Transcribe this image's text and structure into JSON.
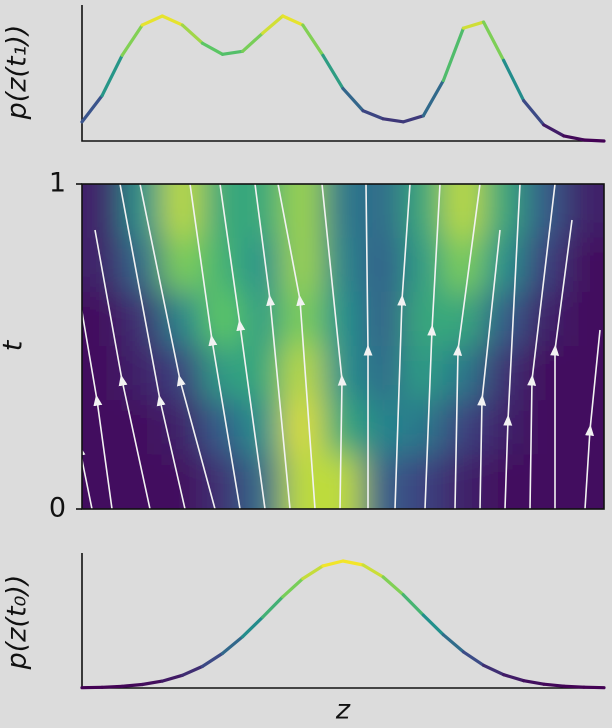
{
  "chart_data": [
    {
      "type": "line",
      "ylabel": "p(z(t₁))",
      "colormap": "viridis",
      "values": [
        19,
        45,
        85,
        115,
        124,
        115,
        97,
        86,
        89,
        107,
        124,
        115,
        85,
        52,
        30,
        22,
        19,
        25,
        60,
        112,
        118,
        80,
        40,
        16,
        5,
        1,
        0
      ]
    },
    {
      "type": "heatmap",
      "ylabel": "t",
      "colormap": "viridis",
      "ylim": [
        0,
        1
      ],
      "yticks": [
        0,
        1
      ],
      "values": [
        [
          0.1,
          0.5,
          0.9,
          0.6,
          0.6,
          0.85,
          0.4,
          0.35,
          0.6,
          0.9,
          0.6,
          0.3,
          0.1
        ],
        [
          0.1,
          0.35,
          0.8,
          0.65,
          0.5,
          0.85,
          0.45,
          0.3,
          0.55,
          0.8,
          0.5,
          0.2,
          0.05
        ],
        [
          0.05,
          0.15,
          0.45,
          0.75,
          0.55,
          0.8,
          0.5,
          0.3,
          0.6,
          0.6,
          0.3,
          0.1,
          0.05
        ],
        [
          0.05,
          0.1,
          0.2,
          0.55,
          0.6,
          0.9,
          0.5,
          0.35,
          0.55,
          0.4,
          0.15,
          0.05,
          0.05
        ],
        [
          0.05,
          0.05,
          0.1,
          0.3,
          0.5,
          0.95,
          0.6,
          0.45,
          0.4,
          0.2,
          0.1,
          0.05,
          0.05
        ],
        [
          0.05,
          0.05,
          0.05,
          0.15,
          0.35,
          0.9,
          0.9,
          0.3,
          0.2,
          0.1,
          0.05,
          0.05,
          0.05
        ]
      ]
    },
    {
      "type": "line",
      "ylabel": "p(z(t₀))",
      "xlabel": "z",
      "colormap": "viridis",
      "values": [
        0.3,
        0.7,
        1.7,
        3.5,
        6.9,
        12.7,
        21.6,
        34.6,
        51.3,
        70.9,
        91.2,
        109.4,
        122.1,
        127,
        123,
        111,
        93.3,
        72.9,
        53.2,
        36.1,
        22.7,
        13.3,
        7.3,
        3.8,
        1.8,
        0.8,
        0.3
      ]
    }
  ]
}
